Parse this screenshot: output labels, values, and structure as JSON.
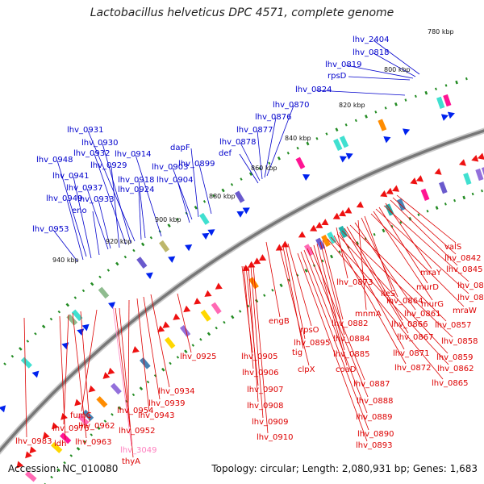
{
  "title": "Lactobacillus helveticus DPC 4571, complete genome",
  "accession": "Accession: NC_010080",
  "topology": "Topology: circular; Length: 2,080,931 bp; Genes: 1,683",
  "colors": {
    "blue_label": "#0000cc",
    "red_label": "#dd0000",
    "pink_label": "#ff7fbf",
    "backbone": "#777777",
    "tick_green": "#228b22",
    "forward_arrow": "#0022ee",
    "reverse_arrow": "#ee1111"
  },
  "kbp_ticks": [
    "780 kbp",
    "800 kbp",
    "820 kbp",
    "840 kbp",
    "860 kbp",
    "880 kbp",
    "900 kbp",
    "920 kbp",
    "940 kbp"
  ],
  "blue_labels": [
    "lhv_2404",
    "lhv_0818",
    "lhv_0819",
    "rpsD",
    "lhv_0824",
    "lhv_0870",
    "lhv_0876",
    "lhv_0877",
    "lhv_0878",
    "def",
    "dapF",
    "lhv_0899",
    "lhv_0903",
    "lhv_0904",
    "lhv_0931",
    "lhv_0930",
    "lhv_0932",
    "lhv_0914",
    "lhv_0948",
    "lhv_0929",
    "lhv_0941",
    "lhv_0918",
    "lhv_0937",
    "lhv_0924",
    "lhv_0949",
    "lhv_0933",
    "eno",
    "lhv_0953"
  ],
  "red_labels": [
    "valS",
    "lhv_0842",
    "lhv_0845",
    "mraY",
    "lhv_0847",
    "murD",
    "lhv_0850",
    "murG",
    "mraW",
    "lhv_0873",
    "ileS",
    "lhv_0864",
    "mnmA",
    "lhv_0861",
    "lhv_0857",
    "lhv_0866",
    "lhv_0867",
    "lhv_0858",
    "lhv_0871",
    "lhv_0859",
    "lhv_0872",
    "lhv_0862",
    "lhv_0865",
    "engB",
    "lhv_0882",
    "rpsO",
    "lhv_0884",
    "lhv_0895",
    "tig",
    "lhv_0885",
    "clpX",
    "coaD",
    "lhv_0887",
    "lhv_0888",
    "lhv_0889",
    "lhv_0890",
    "lhv_0893",
    "lhv_0925",
    "lhv_0905",
    "lhv_0906",
    "lhv_0907",
    "lhv_0908",
    "lhv_0909",
    "lhv_0910",
    "lhv_0934",
    "lhv_0939",
    "lhv_0943",
    "lhv_0954",
    "fumC",
    "lhv_0952",
    "lhv_0962",
    "lhv_0976",
    "ldh",
    "lhv_0983",
    "lhv_0963",
    "thyA"
  ],
  "pink_labels": [
    "lhv_3049"
  ]
}
